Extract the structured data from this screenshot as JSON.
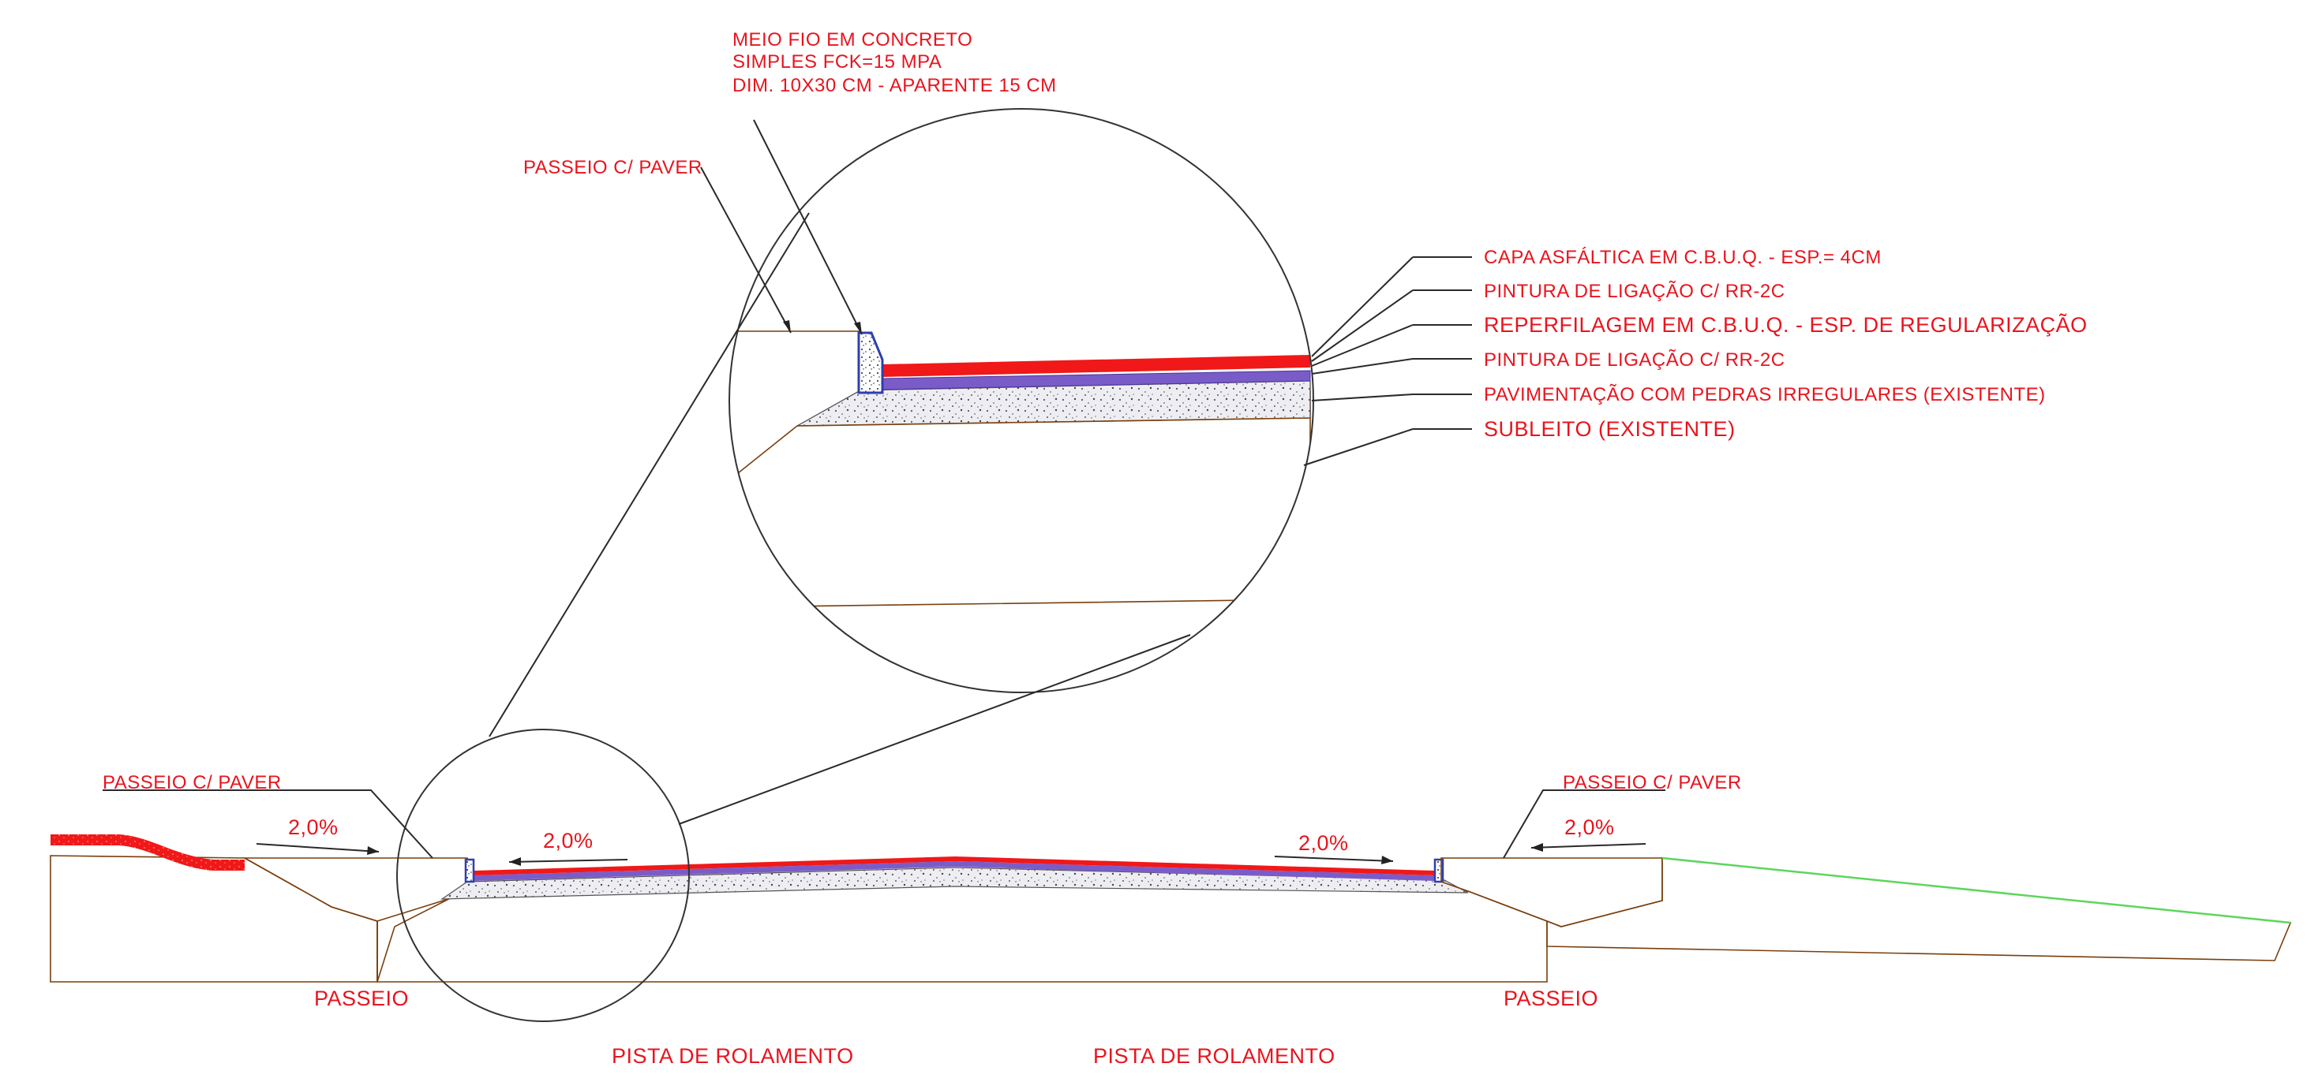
{
  "detail": {
    "meio_fio": [
      "MEIO FIO EM CONCRETO",
      "SIMPLES FCK=15 MPA",
      "DIM. 10X30 CM - APARENTE 15 CM"
    ],
    "passeio_paver": "PASSEIO C/ PAVER",
    "layers": [
      "CAPA ASFÁLTICA EM C.B.U.Q. - ESP.= 4CM",
      "PINTURA DE LIGAÇÃO C/ RR-2C",
      "REPERFILAGEM EM C.B.U.Q. - ESP. DE REGULARIZAÇÃO",
      "PINTURA DE LIGAÇÃO C/ RR-2C",
      "PAVIMENTAÇÃO COM PEDRAS IRREGULARES (EXISTENTE)",
      "SUBLEITO (EXISTENTE)"
    ]
  },
  "section": {
    "passeio_paver_left": "PASSEIO C/ PAVER",
    "passeio_paver_right": "PASSEIO C/ PAVER",
    "slopes": [
      "2,0%",
      "2,0%",
      "2,0%",
      "2,0%"
    ],
    "passeio_left": "PASSEIO",
    "passeio_right": "PASSEIO",
    "pista_left": "PISTA DE ROLAMENTO",
    "pista_right": "PISTA DE ROLAMENTO"
  },
  "colors": {
    "label": "#e8141e",
    "asphalt": "#f01818",
    "tack_coat": "#7a5cc9",
    "soil_hatch": "#c8741e",
    "gravel": "#e6e6ea",
    "curb": "#2f3fb0",
    "terrain_line": "#5cd65c"
  }
}
